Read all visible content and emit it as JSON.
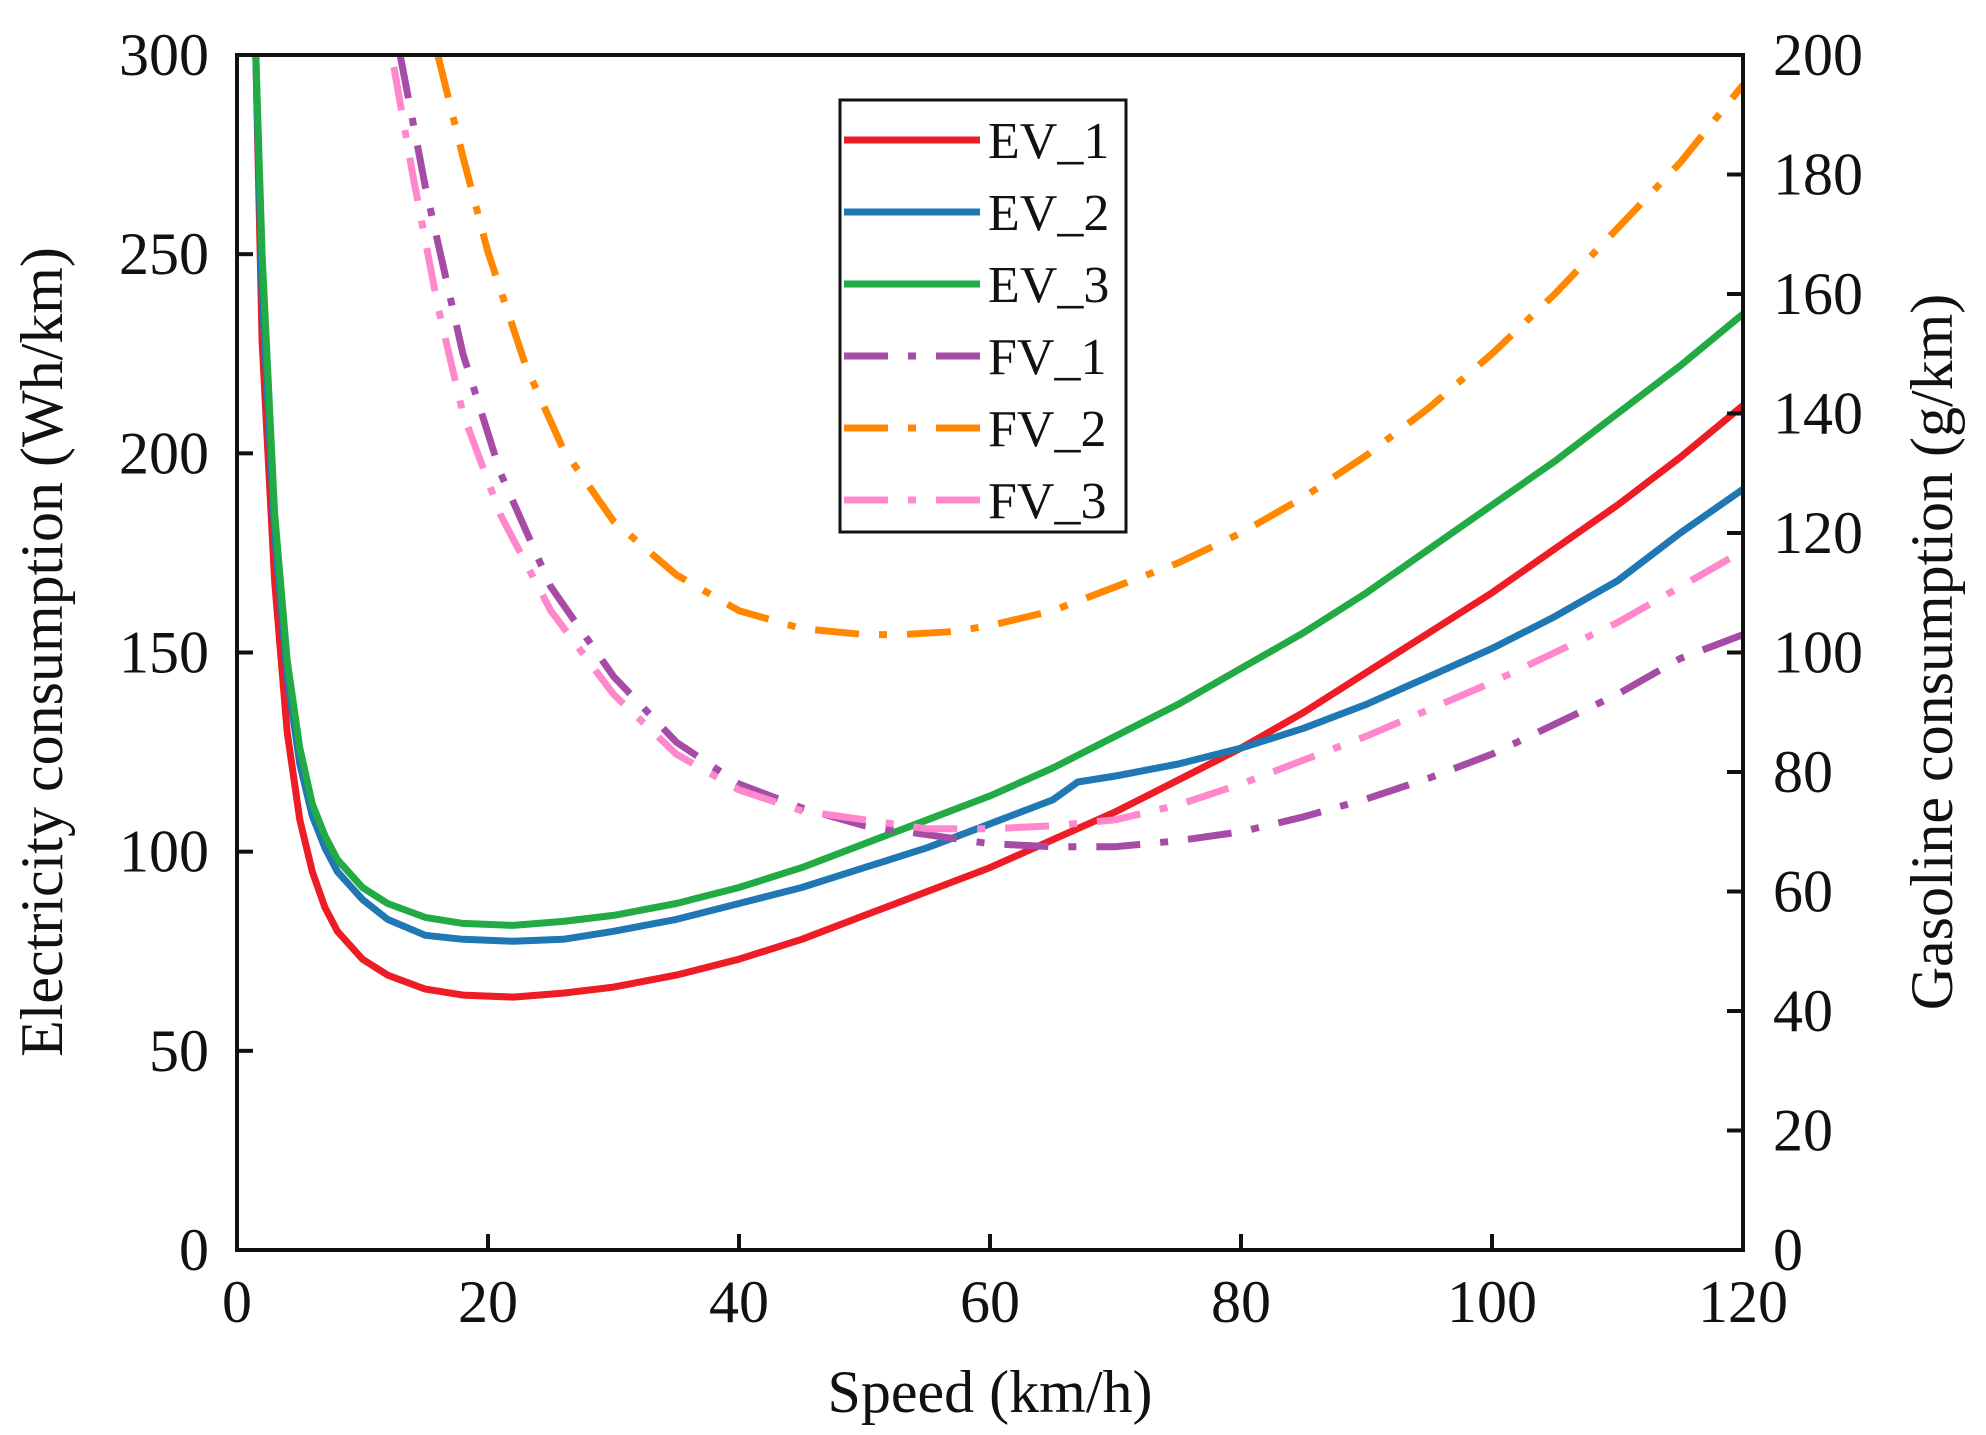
{
  "chart_data": {
    "type": "line",
    "title": "",
    "xlabel": "Speed (km/h)",
    "ylabel": "Electricity consumption (Wh/km)",
    "y2label": "Gasoline consumption (g/km)",
    "xlim": [
      0,
      120
    ],
    "ylim": [
      0,
      300
    ],
    "y2lim": [
      0,
      200
    ],
    "xticks": [
      0,
      20,
      40,
      60,
      80,
      100,
      120
    ],
    "yticks": [
      0,
      50,
      100,
      150,
      200,
      250,
      300
    ],
    "y2ticks": [
      0,
      20,
      40,
      60,
      80,
      100,
      120,
      140,
      160,
      180,
      200
    ],
    "grid": false,
    "legend_position": "top-center",
    "series": [
      {
        "name": "EV_1",
        "axis": "left",
        "color": "#ee1c25",
        "dash": "solid",
        "x": [
          1.5,
          2,
          3,
          4,
          5,
          6,
          7,
          8,
          10,
          12,
          15,
          18,
          22,
          26,
          30,
          35,
          40,
          45,
          50,
          55,
          60,
          65,
          70,
          75,
          80,
          85,
          90,
          95,
          100,
          105,
          110,
          115,
          120
        ],
        "y": [
          300,
          228,
          168,
          130,
          108,
          95,
          86,
          80,
          73,
          69,
          65.5,
          64,
          63.5,
          64.5,
          66,
          69,
          73,
          78,
          84,
          90,
          96,
          103,
          110,
          118,
          126,
          135,
          145,
          155,
          165,
          176,
          187,
          199,
          212
        ]
      },
      {
        "name": "EV_2",
        "axis": "left",
        "color": "#1f77b4",
        "dash": "solid",
        "x": [
          1.5,
          2,
          3,
          4,
          5,
          6,
          7,
          8,
          10,
          12,
          15,
          18,
          22,
          26,
          30,
          35,
          40,
          45,
          50,
          55,
          60,
          65,
          67,
          70,
          75,
          80,
          85,
          90,
          95,
          100,
          105,
          110,
          115,
          120
        ],
        "y": [
          300,
          240,
          180,
          144,
          122,
          109,
          101,
          95,
          88,
          83,
          79,
          78,
          77.5,
          78,
          80,
          83,
          87,
          91,
          96,
          101,
          107,
          113,
          117.5,
          119,
          122,
          126,
          131,
          137,
          144,
          151,
          159,
          168,
          180,
          191
        ]
      },
      {
        "name": "EV_3",
        "axis": "left",
        "color": "#22aa44",
        "dash": "solid",
        "x": [
          1.5,
          2,
          3,
          4,
          5,
          6,
          7,
          8,
          10,
          12,
          15,
          18,
          22,
          26,
          30,
          35,
          40,
          45,
          50,
          55,
          60,
          65,
          70,
          75,
          80,
          85,
          90,
          95,
          100,
          105,
          110,
          115,
          120
        ],
        "y": [
          300,
          250,
          185,
          148,
          126,
          112,
          104,
          98,
          91,
          87,
          83.5,
          82,
          81.5,
          82.5,
          84,
          87,
          91,
          96,
          102,
          108,
          114,
          121,
          129,
          137,
          146,
          155,
          165,
          176,
          187,
          198,
          210,
          222,
          235
        ]
      },
      {
        "name": "FV_1",
        "axis": "right",
        "color": "#a64ca6",
        "dash": "dashdot",
        "x": [
          13,
          15,
          18,
          21,
          25,
          30,
          35,
          40,
          45,
          50,
          55,
          60,
          65,
          70,
          75,
          80,
          85,
          90,
          95,
          100,
          105,
          110,
          115,
          120
        ],
        "y": [
          200,
          178,
          150,
          130,
          111,
          96,
          85,
          78,
          74,
          71,
          69.5,
          68,
          67.5,
          67.5,
          68.5,
          70,
          72.5,
          75.5,
          79,
          83,
          88,
          93,
          99,
          103
        ]
      },
      {
        "name": "FV_2",
        "axis": "right",
        "color": "#ff8800",
        "dash": "dashdot",
        "x": [
          16,
          18,
          20,
          23,
          26,
          30,
          35,
          40,
          45,
          50,
          53,
          57,
          60,
          65,
          70,
          75,
          80,
          85,
          90,
          95,
          100,
          105,
          110,
          115,
          120
        ],
        "y": [
          200,
          183,
          167,
          148,
          134,
          122,
          113,
          107,
          104,
          103,
          103,
          103.5,
          104.5,
          107,
          111,
          115,
          120,
          126,
          133,
          141,
          150,
          160,
          171,
          182,
          195
        ]
      },
      {
        "name": "FV_3",
        "axis": "right",
        "color": "#ff88cc",
        "dash": "dashdot",
        "x": [
          12.5,
          14,
          16,
          18,
          21,
          25,
          30,
          35,
          40,
          45,
          50,
          55,
          60,
          65,
          70,
          75,
          80,
          85,
          90,
          95,
          100,
          105,
          110,
          115,
          120
        ],
        "y": [
          198,
          180,
          158,
          140,
          123,
          107,
          93,
          83,
          77,
          73.5,
          72,
          70.5,
          70.5,
          71,
          72,
          74.5,
          78,
          82,
          86,
          90.5,
          95,
          100,
          105,
          111,
          117
        ]
      }
    ]
  }
}
